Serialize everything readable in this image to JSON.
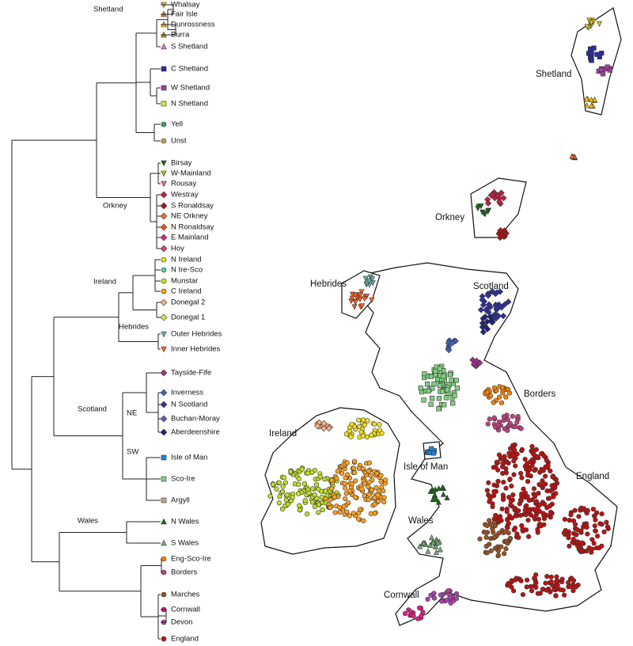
{
  "leaves": [
    {
      "label": "Whalsay",
      "color": "#e0c020",
      "shape": "tridown"
    },
    {
      "label": "Fair Isle",
      "color": "#ff6a2a",
      "shape": "tri"
    },
    {
      "label": "Dunrossness",
      "color": "#ffc000",
      "shape": "tri"
    },
    {
      "label": "Burra",
      "color": "#c08a20",
      "shape": "tri"
    },
    {
      "label": "S Shetland",
      "color": "#d080d0",
      "shape": "tri"
    },
    {
      "label": "C Shetland",
      "color": "#2a2aa0",
      "shape": "square"
    },
    {
      "label": "W Shetland",
      "color": "#a040a0",
      "shape": "square"
    },
    {
      "label": "N Shetland",
      "color": "#e0e040",
      "shape": "square"
    },
    {
      "label": "Yell",
      "color": "#40a060",
      "shape": "circle"
    },
    {
      "label": "Unst",
      "color": "#c0a060",
      "shape": "circle"
    },
    {
      "label": "Birsay",
      "color": "#1a6a1a",
      "shape": "tridown"
    },
    {
      "label": "W-Mainland",
      "color": "#90d020",
      "shape": "tridown"
    },
    {
      "label": "Rousay",
      "color": "#f07070",
      "shape": "tridown"
    },
    {
      "label": "Westray",
      "color": "#c02040",
      "shape": "diamond"
    },
    {
      "label": "S Ronaldsay",
      "color": "#b01010",
      "shape": "diamond"
    },
    {
      "label": "NE Orkney",
      "color": "#f07030",
      "shape": "diamond"
    },
    {
      "label": "N Ronaldsay",
      "color": "#ff5010",
      "shape": "diamond"
    },
    {
      "label": "E Mainland",
      "color": "#e02080",
      "shape": "diamond"
    },
    {
      "label": "Hoy",
      "color": "#e04070",
      "shape": "diamond"
    },
    {
      "label": "N Ireland",
      "color": "#f0e020",
      "shape": "circle"
    },
    {
      "label": "N Ire-Sco",
      "color": "#60d0a0",
      "shape": "circle"
    },
    {
      "label": "Munstar",
      "color": "#c0e020",
      "shape": "circle"
    },
    {
      "label": "C Ireland",
      "color": "#ffa020",
      "shape": "circle"
    },
    {
      "label": "Donegal 2",
      "color": "#ffb080",
      "shape": "diamond"
    },
    {
      "label": "Donegal 1",
      "color": "#e0e060",
      "shape": "diamond"
    },
    {
      "label": "Outer Hebrides",
      "color": "#60b0b0",
      "shape": "tridown"
    },
    {
      "label": "Inner Hebrides",
      "color": "#ff6020",
      "shape": "tridown"
    },
    {
      "label": "Tayside-Fife",
      "color": "#a03090",
      "shape": "diamond"
    },
    {
      "label": "Inverness",
      "color": "#4060c0",
      "shape": "diamond"
    },
    {
      "label": "N Scotland",
      "color": "#3030a0",
      "shape": "diamond"
    },
    {
      "label": "Buchan-Moray",
      "color": "#6060c0",
      "shape": "diamond"
    },
    {
      "label": "Aberdeenshire",
      "color": "#202080",
      "shape": "diamond"
    },
    {
      "label": "Isle of Man",
      "color": "#2080d0",
      "shape": "square"
    },
    {
      "label": "Sco-Ire",
      "color": "#80d080",
      "shape": "square"
    },
    {
      "label": "Argyll",
      "color": "#c0a080",
      "shape": "square"
    },
    {
      "label": "N Wales",
      "color": "#1a6a1a",
      "shape": "tri"
    },
    {
      "label": "S Wales",
      "color": "#70b070",
      "shape": "tri"
    },
    {
      "label": "Eng-Sco-Ire",
      "color": "#ff8000",
      "shape": "circle"
    },
    {
      "label": "Borders",
      "color": "#c04080",
      "shape": "circle"
    },
    {
      "label": "Marches",
      "color": "#a05020",
      "shape": "circle"
    },
    {
      "label": "Cornwall",
      "color": "#e02080",
      "shape": "circle"
    },
    {
      "label": "Devon",
      "color": "#b040b0",
      "shape": "circle"
    },
    {
      "label": "England",
      "color": "#c01010",
      "shape": "circle"
    }
  ],
  "clades": [
    "Shetland",
    "Orkney",
    "Ireland",
    "Hebrides",
    "Scotland",
    "NE",
    "SW",
    "Wales"
  ],
  "map_labels": [
    "Shetland",
    "Orkney",
    "Hebrides",
    "Scotland",
    "Borders",
    "Ireland",
    "Isle of Man",
    "England",
    "Wales",
    "Cornwall"
  ]
}
